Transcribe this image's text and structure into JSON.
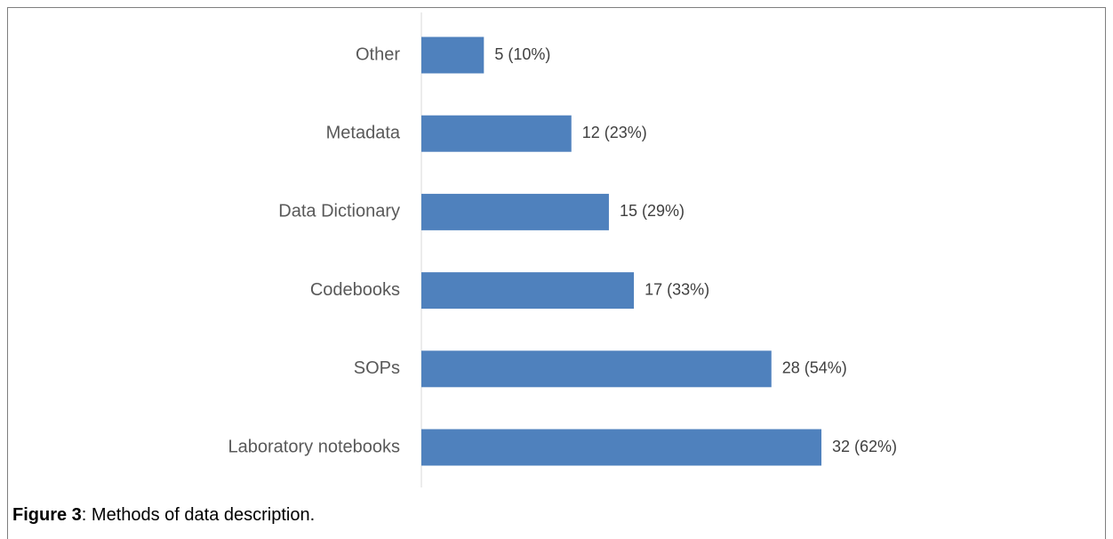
{
  "chart_data": {
    "type": "bar",
    "orientation": "horizontal",
    "categories": [
      "Other",
      "Metadata",
      "Data Dictionary",
      "Codebooks",
      "SOPs",
      "Laboratory notebooks"
    ],
    "values": [
      5,
      12,
      15,
      17,
      28,
      32
    ],
    "value_labels": [
      "5 (10%)",
      "12 (23%)",
      "15 (29%)",
      "17 (33%)",
      "28 (54%)",
      "32 (62%)"
    ],
    "color": "#4f81bd"
  },
  "caption": {
    "label": "Figure 3",
    "text": ": Methods of data description."
  }
}
